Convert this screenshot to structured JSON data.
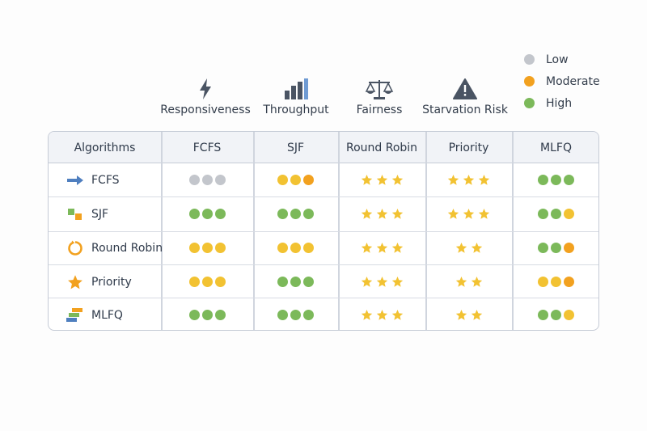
{
  "criteria": [
    {
      "label": "Responsiveness",
      "icon": "lightning-icon"
    },
    {
      "label": "Throughput",
      "icon": "bar-chart-icon"
    },
    {
      "label": "Fairness",
      "icon": "balance-scale-icon"
    },
    {
      "label": "Starvation Risk",
      "icon": "warning-icon"
    }
  ],
  "legend": [
    {
      "label": "Low",
      "color": "#c3c6cc"
    },
    {
      "label": "Moderate",
      "color": "#f2a11f"
    },
    {
      "label": "High",
      "color": "#7cb95a"
    }
  ],
  "table": {
    "header_label": "Algorithms",
    "columns": [
      "FCFS",
      "SJF",
      "Round Robin",
      "Priority",
      "MLFQ"
    ],
    "rows": [
      {
        "label": "FCFS",
        "icon": "arrow-right-icon",
        "cells": [
          {
            "kind": "dots",
            "colors": [
              "#c3c6cc",
              "#c3c6cc",
              "#c3c6cc"
            ]
          },
          {
            "kind": "dots",
            "colors": [
              "#f2c232",
              "#f2c232",
              "#f2a11f"
            ]
          },
          {
            "kind": "stars",
            "count": 3
          },
          {
            "kind": "stars",
            "count": 3
          },
          {
            "kind": "dots",
            "colors": [
              "#7cb95a",
              "#7cb95a",
              "#7cb95a"
            ]
          }
        ]
      },
      {
        "label": "SJF",
        "icon": "blocks-icon",
        "cells": [
          {
            "kind": "dots",
            "colors": [
              "#7cb95a",
              "#7cb95a",
              "#7cb95a"
            ]
          },
          {
            "kind": "dots",
            "colors": [
              "#7cb95a",
              "#7cb95a",
              "#7cb95a"
            ]
          },
          {
            "kind": "stars",
            "count": 3
          },
          {
            "kind": "stars",
            "count": 3
          },
          {
            "kind": "dots",
            "colors": [
              "#7cb95a",
              "#7cb95a",
              "#f2c232"
            ]
          }
        ]
      },
      {
        "label": "Round Robin",
        "icon": "cycle-icon",
        "cells": [
          {
            "kind": "dots",
            "colors": [
              "#f2c232",
              "#f2c232",
              "#f2c232"
            ]
          },
          {
            "kind": "dots",
            "colors": [
              "#f2c232",
              "#f2c232",
              "#f2c232"
            ]
          },
          {
            "kind": "stars",
            "count": 3
          },
          {
            "kind": "stars",
            "count": 2
          },
          {
            "kind": "dots",
            "colors": [
              "#7cb95a",
              "#7cb95a",
              "#f2a11f"
            ]
          }
        ]
      },
      {
        "label": "Priority",
        "icon": "star-icon",
        "cells": [
          {
            "kind": "dots",
            "colors": [
              "#f2c232",
              "#f2c232",
              "#f2c232"
            ]
          },
          {
            "kind": "dots",
            "colors": [
              "#7cb95a",
              "#7cb95a",
              "#7cb95a"
            ]
          },
          {
            "kind": "stars",
            "count": 3
          },
          {
            "kind": "stars",
            "count": 2
          },
          {
            "kind": "dots",
            "colors": [
              "#f2c232",
              "#f2c232",
              "#f2a11f"
            ]
          }
        ]
      },
      {
        "label": "MLFQ",
        "icon": "stacked-layers-icon",
        "cells": [
          {
            "kind": "dots",
            "colors": [
              "#7cb95a",
              "#7cb95a",
              "#7cb95a"
            ]
          },
          {
            "kind": "dots",
            "colors": [
              "#7cb95a",
              "#7cb95a",
              "#7cb95a"
            ]
          },
          {
            "kind": "stars",
            "count": 3
          },
          {
            "kind": "stars",
            "count": 2
          },
          {
            "kind": "dots",
            "colors": [
              "#7cb95a",
              "#7cb95a",
              "#f2c232"
            ]
          }
        ]
      }
    ]
  },
  "colors": {
    "star": "#f2c232",
    "icon_dark": "#4a5463",
    "icon_blue": "#4f7fbf"
  }
}
